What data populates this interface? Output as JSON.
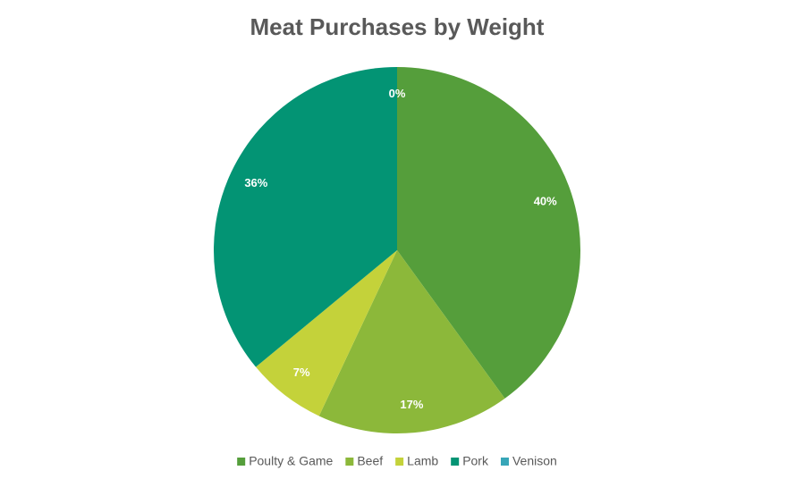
{
  "chart_data": {
    "type": "pie",
    "title": "Meat Purchases by Weight",
    "categories": [
      "Poulty & Game",
      "Beef",
      "Lamb",
      "Pork",
      "Venison"
    ],
    "values": [
      40,
      17,
      7,
      36,
      0
    ],
    "value_labels": [
      "40%",
      "17%",
      "7%",
      "36%",
      "0%"
    ],
    "colors": [
      "#559e3b",
      "#8cb83a",
      "#c4d23a",
      "#039474",
      "#37a6b8"
    ]
  }
}
